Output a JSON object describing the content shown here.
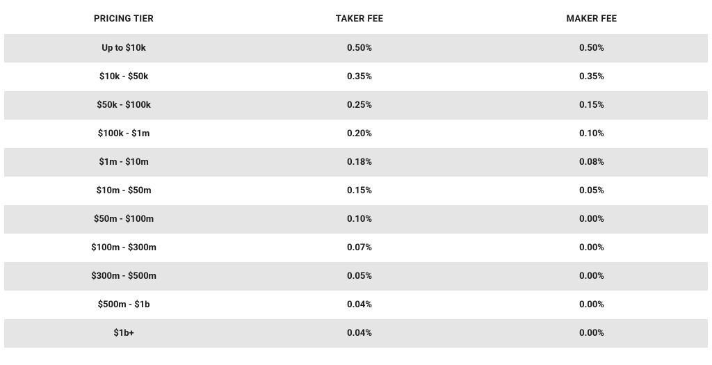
{
  "table": {
    "type": "table",
    "background_color": "#ffffff",
    "stripe_color": "#e5e5e5",
    "text_color": "#1a1a1a",
    "header_fontsize": 13,
    "cell_fontsize": 13,
    "font_weight": 700,
    "columns": [
      {
        "key": "tier",
        "label": "PRICING TIER",
        "width_pct": 34,
        "align": "center"
      },
      {
        "key": "taker",
        "label": "TAKER FEE",
        "width_pct": 33,
        "align": "center"
      },
      {
        "key": "maker",
        "label": "MAKER FEE",
        "width_pct": 33,
        "align": "center"
      }
    ],
    "rows": [
      {
        "tier": "Up to $10k",
        "taker": "0.50%",
        "maker": "0.50%"
      },
      {
        "tier": "$10k - $50k",
        "taker": "0.35%",
        "maker": "0.35%"
      },
      {
        "tier": "$50k - $100k",
        "taker": "0.25%",
        "maker": "0.15%"
      },
      {
        "tier": "$100k - $1m",
        "taker": "0.20%",
        "maker": "0.10%"
      },
      {
        "tier": "$1m - $10m",
        "taker": "0.18%",
        "maker": "0.08%"
      },
      {
        "tier": "$10m - $50m",
        "taker": "0.15%",
        "maker": "0.05%"
      },
      {
        "tier": "$50m - $100m",
        "taker": "0.10%",
        "maker": "0.00%"
      },
      {
        "tier": "$100m - $300m",
        "taker": "0.07%",
        "maker": "0.00%"
      },
      {
        "tier": "$300m - $500m",
        "taker": "0.05%",
        "maker": "0.00%"
      },
      {
        "tier": "$500m - $1b",
        "taker": "0.04%",
        "maker": "0.00%"
      },
      {
        "tier": "$1b+",
        "taker": "0.04%",
        "maker": "0.00%"
      }
    ]
  }
}
